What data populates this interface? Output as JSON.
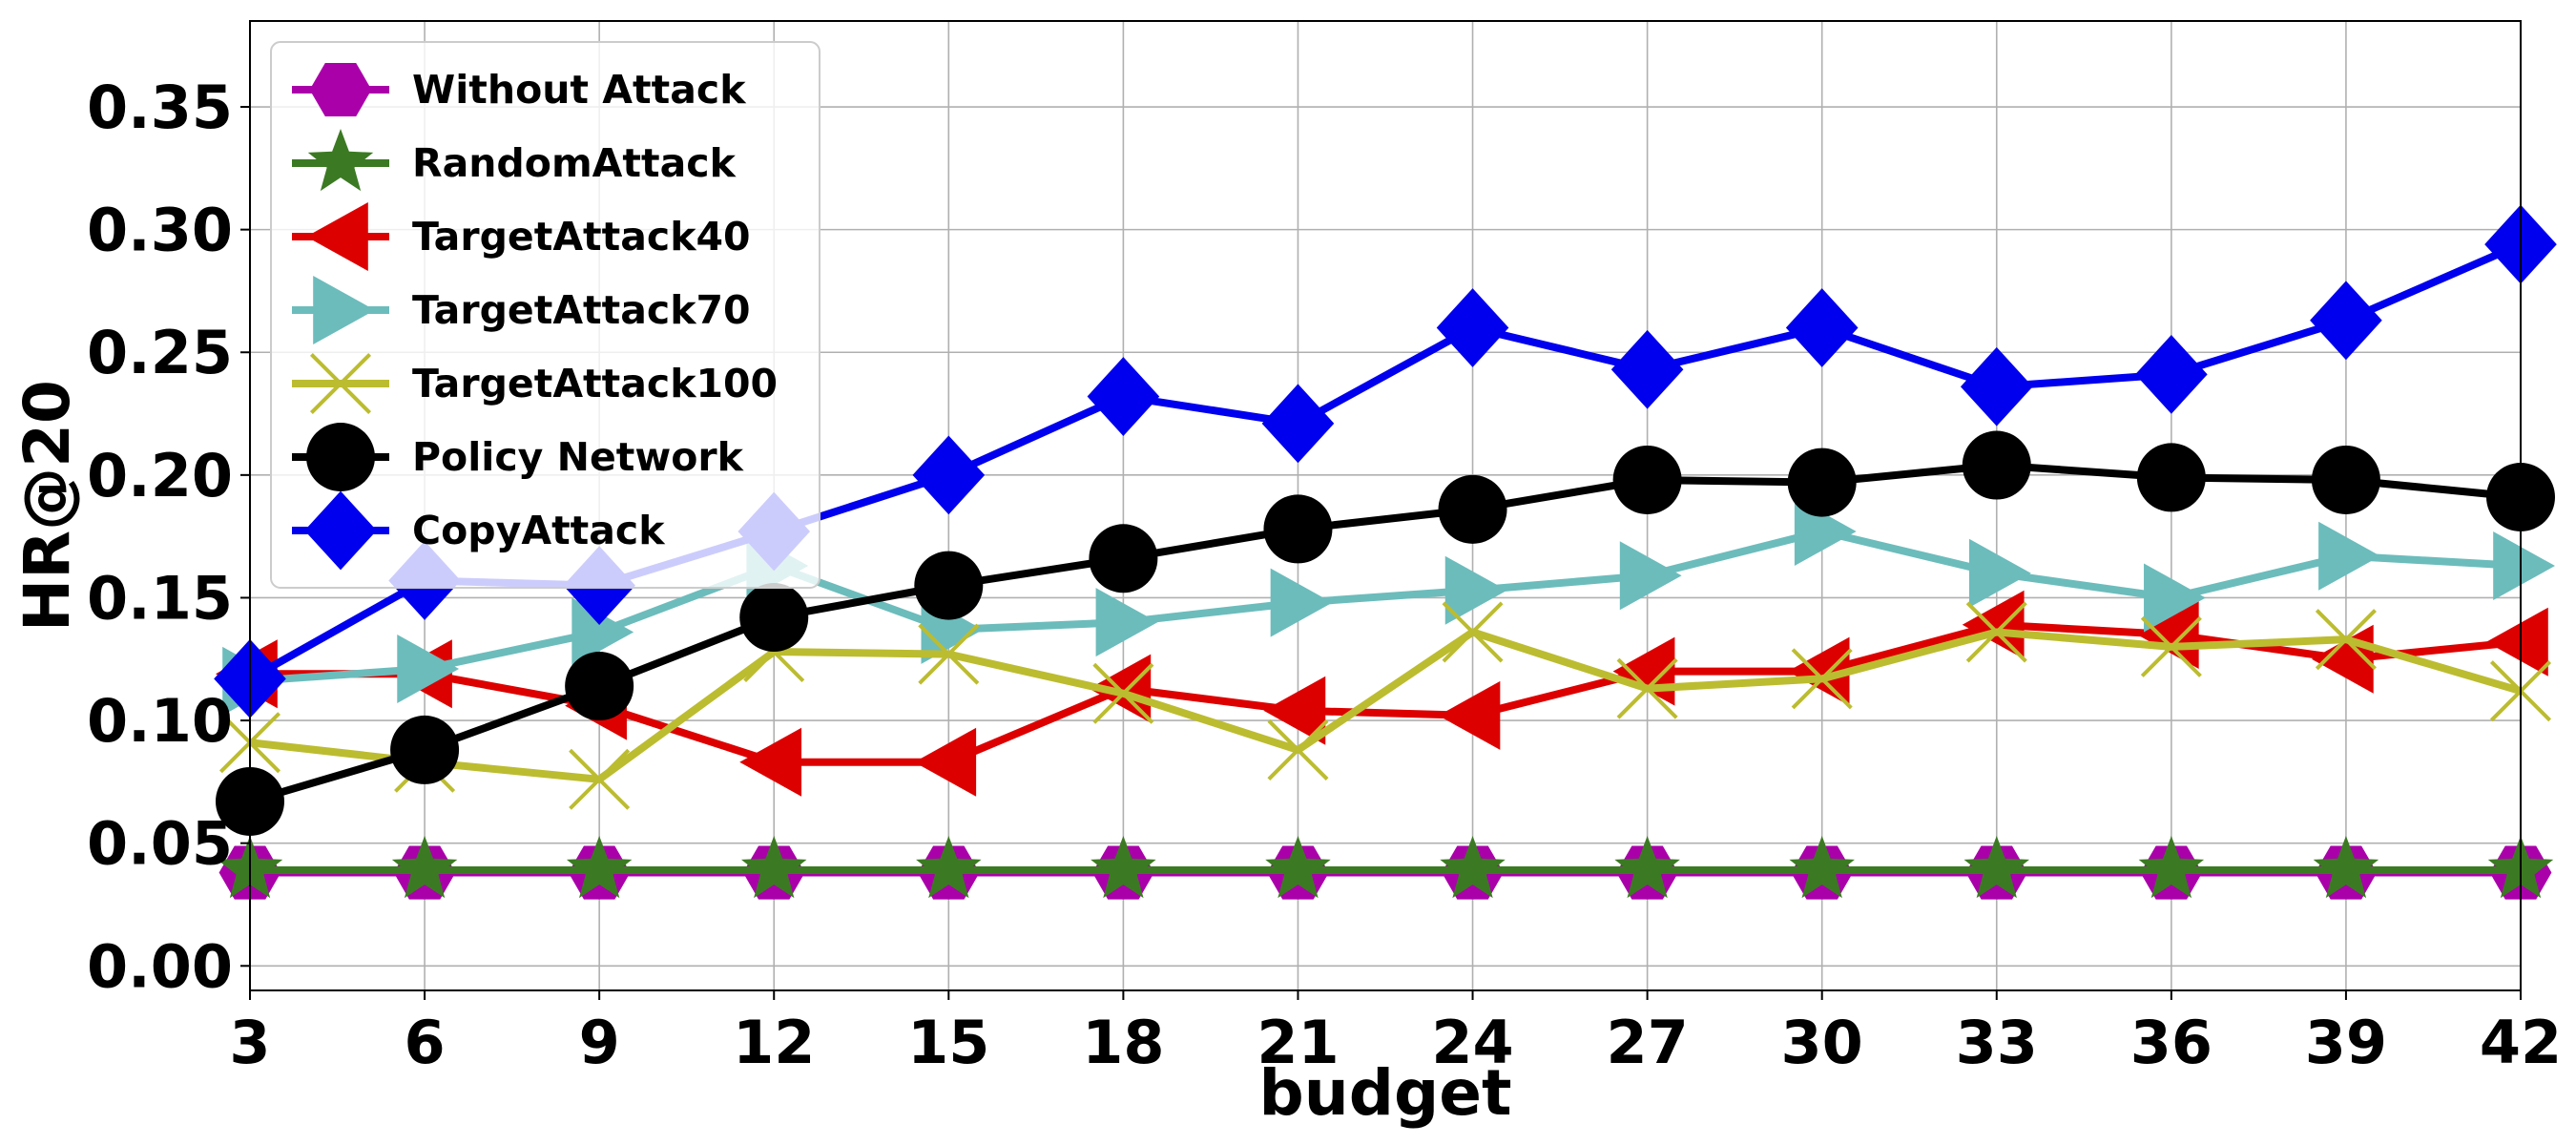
{
  "chart_data": {
    "type": "line",
    "title": "",
    "xlabel": "budget",
    "ylabel": "HR@20",
    "x": [
      3,
      6,
      9,
      12,
      15,
      18,
      21,
      24,
      27,
      30,
      33,
      36,
      39,
      42
    ],
    "xlim": [
      3,
      42
    ],
    "ylim": [
      -0.01,
      0.385
    ],
    "x_ticks": [
      "3",
      "6",
      "9",
      "12",
      "15",
      "18",
      "21",
      "24",
      "27",
      "30",
      "33",
      "36",
      "39",
      "42"
    ],
    "y_ticks": [
      "0.00",
      "0.05",
      "0.10",
      "0.15",
      "0.20",
      "0.25",
      "0.30",
      "0.35"
    ],
    "grid": true,
    "legend_position": "top-left",
    "series": [
      {
        "name": "Without Attack",
        "color": "#aa00aa",
        "marker": "hexagon",
        "values": [
          0.038,
          0.038,
          0.038,
          0.038,
          0.038,
          0.038,
          0.038,
          0.038,
          0.038,
          0.038,
          0.038,
          0.038,
          0.038,
          0.038
        ]
      },
      {
        "name": "RandomAttack",
        "color": "#3b7a22",
        "marker": "star",
        "values": [
          0.039,
          0.039,
          0.039,
          0.039,
          0.039,
          0.039,
          0.039,
          0.039,
          0.039,
          0.039,
          0.039,
          0.039,
          0.039,
          0.039
        ]
      },
      {
        "name": "TargetAttack40",
        "color": "#dd0000",
        "marker": "triangle-left",
        "values": [
          0.119,
          0.119,
          0.106,
          0.083,
          0.083,
          0.113,
          0.104,
          0.102,
          0.12,
          0.12,
          0.139,
          0.135,
          0.125,
          0.132
        ]
      },
      {
        "name": "TargetAttack70",
        "color": "#6cbcbc",
        "marker": "triangle-right",
        "values": [
          0.116,
          0.121,
          0.136,
          0.163,
          0.137,
          0.14,
          0.148,
          0.153,
          0.159,
          0.177,
          0.16,
          0.15,
          0.167,
          0.163
        ]
      },
      {
        "name": "TargetAttack100",
        "color": "#bcbc30",
        "marker": "x",
        "values": [
          0.091,
          0.083,
          0.076,
          0.128,
          0.127,
          0.111,
          0.088,
          0.136,
          0.113,
          0.117,
          0.136,
          0.13,
          0.133,
          0.112
        ]
      },
      {
        "name": "Policy Network",
        "color": "#000000",
        "marker": "circle",
        "values": [
          0.067,
          0.088,
          0.114,
          0.142,
          0.155,
          0.166,
          0.178,
          0.186,
          0.198,
          0.197,
          0.204,
          0.199,
          0.198,
          0.191
        ]
      },
      {
        "name": "CopyAttack",
        "color": "#0000ee",
        "marker": "diamond",
        "values": [
          0.117,
          0.157,
          0.155,
          0.177,
          0.2,
          0.232,
          0.221,
          0.26,
          0.243,
          0.26,
          0.236,
          0.241,
          0.263,
          0.294
        ]
      }
    ]
  }
}
